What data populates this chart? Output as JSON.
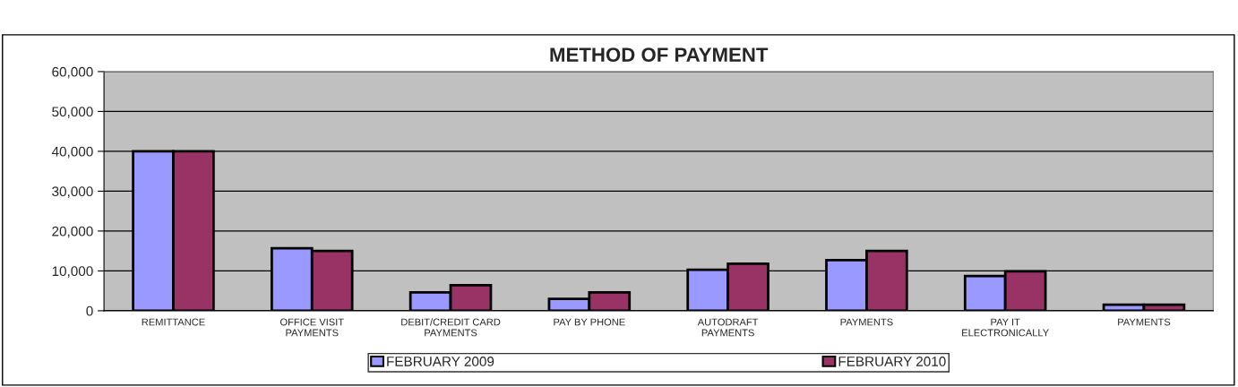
{
  "chart_data": {
    "type": "bar",
    "title": "METHOD OF PAYMENT",
    "categories": [
      "REMITTANCE",
      "OFFICE VISIT\nPAYMENTS",
      "DEBIT/CREDIT CARD\nPAYMENTS",
      "PAY BY PHONE",
      "AUTODRAFT\nPAYMENTS",
      "PAYMENTS",
      "PAY IT\nELECTRONICALLY",
      "PAYMENTS"
    ],
    "series": [
      {
        "name": "FEBRUARY 2009",
        "color": "#9999ff",
        "values": [
          40000,
          15700,
          4600,
          3000,
          10300,
          12700,
          8700,
          1500
        ]
      },
      {
        "name": "FEBRUARY 2010",
        "color": "#993366",
        "values": [
          40000,
          15000,
          6400,
          4600,
          11800,
          15000,
          9900,
          1500
        ]
      }
    ],
    "ylim": [
      0,
      60000
    ],
    "yticks": [
      {
        "value": 0,
        "label": "0"
      },
      {
        "value": 10000,
        "label": "10,000"
      },
      {
        "value": 20000,
        "label": "20,000"
      },
      {
        "value": 30000,
        "label": "30,000"
      },
      {
        "value": 40000,
        "label": "40,000"
      },
      {
        "value": 50000,
        "label": "50,000"
      },
      {
        "value": 60000,
        "label": "60,000"
      }
    ],
    "grid": "y",
    "legend": "bottom"
  }
}
